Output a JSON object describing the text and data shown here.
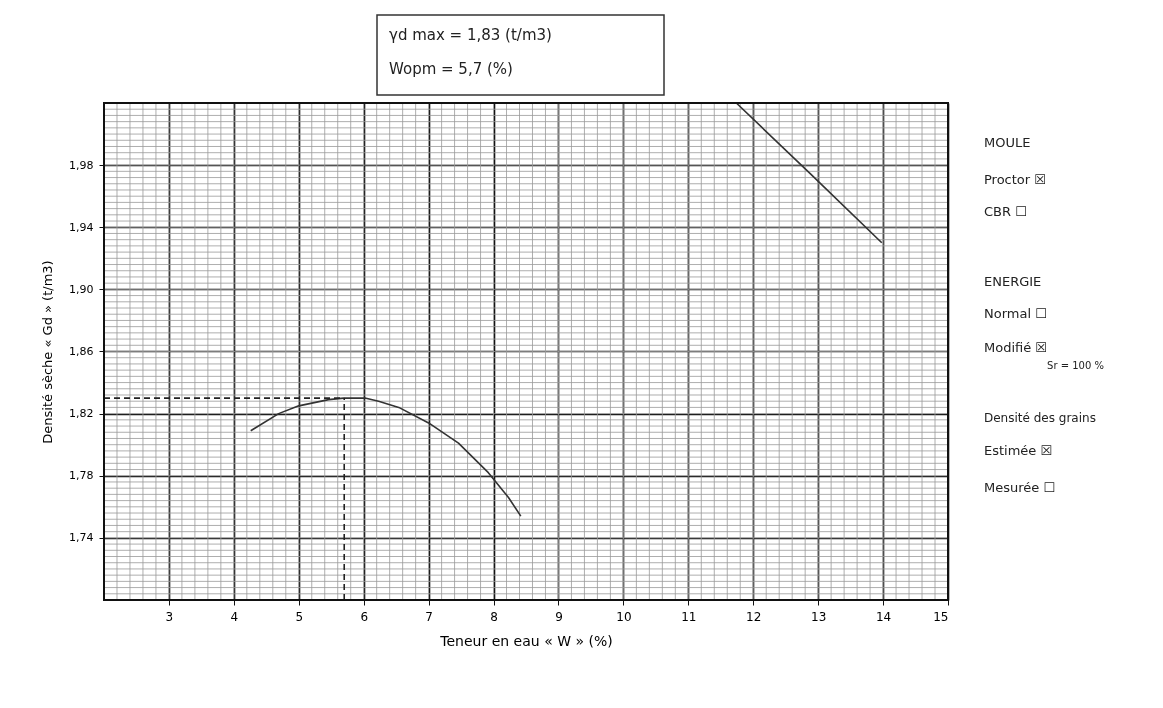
{
  "chart_data": {
    "type": "line",
    "xlabel": "Teneur en eau « W » (%)",
    "ylabel": "Densité sèche « Gd » (t/m3)",
    "annotations": [
      "γd max = 1,83 (t/m3)",
      "Wopm = 5,7 (%)",
      "MOULE",
      "Proctor ☒",
      "CBR ☐",
      "ENERGIE",
      "Normal ☐",
      "Modifié ☒",
      "Sr = 100 %",
      "Densité des grains",
      "Estimée ☒",
      "Mesurée ☐"
    ],
    "xlim": [
      2,
      15
    ],
    "xticks": [
      3,
      4,
      5,
      6,
      7,
      8,
      9,
      10,
      11,
      12,
      13,
      14,
      15
    ],
    "ylim": [
      1.7,
      2.02
    ],
    "yticks": [
      {
        "value": 1.74,
        "label": "1,74"
      },
      {
        "value": 1.78,
        "label": "1,78"
      },
      {
        "value": 1.82,
        "label": "1,82"
      },
      {
        "value": 1.86,
        "label": "1,86"
      },
      {
        "value": 1.9,
        "label": "1,90"
      },
      {
        "value": 1.94,
        "label": "1,94"
      },
      {
        "value": 1.98,
        "label": "1,98"
      }
    ],
    "grid": true,
    "marker": "none",
    "line_style": "solid",
    "series": [
      {
        "color": "#333333",
        "x": [
          4.26,
          4.69,
          5.0,
          5.46,
          5.69,
          6.02,
          6.23,
          6.54,
          7.0,
          7.46,
          7.92,
          8.23,
          8.42
        ],
        "values": [
          1.809,
          1.82,
          1.825,
          1.829,
          1.83,
          1.83,
          1.828,
          1.824,
          1.814,
          1.801,
          1.782,
          1.766,
          1.754
        ]
      },
      {
        "color": "#333333",
        "x": [
          11.74,
          12.89,
          13.98
        ],
        "values": [
          2.02,
          1.974,
          1.93
        ]
      },
      {
        "color": "#222222",
        "line_style": "dashed",
        "x": [
          2,
          5.7
        ],
        "values": [
          1.83,
          1.83
        ]
      },
      {
        "color": "#222222",
        "line_style": "dashed",
        "x": [
          5.7,
          5.7
        ],
        "values": [
          1.7,
          1.83
        ]
      }
    ]
  }
}
